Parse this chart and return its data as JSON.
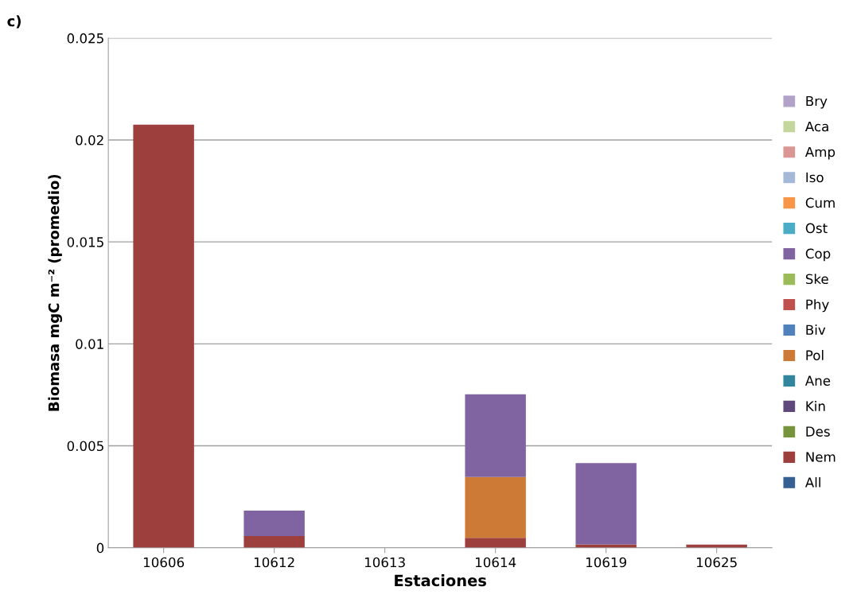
{
  "chart_data": {
    "type": "bar",
    "stacked": true,
    "title": "c)",
    "xlabel": "Estaciones",
    "ylabel": "Biomasa mgC m⁻² (promedio)",
    "categories": [
      "10606",
      "10612",
      "10613",
      "10614",
      "10619",
      "10625"
    ],
    "ylim": [
      0,
      0.025
    ],
    "yticks": [
      {
        "value": 0,
        "label": "0"
      },
      0.005,
      0.01,
      0.015,
      0.02,
      0.025
    ],
    "grid": "y",
    "legend": "right",
    "series": [
      {
        "name": "All",
        "color": "#376092",
        "values": [
          0,
          0,
          0,
          0,
          0,
          0
        ]
      },
      {
        "name": "Nem",
        "color": "#9c3f3d",
        "values": [
          0.02075,
          0.00057,
          0,
          0.00048,
          0.00016,
          0.00015
        ]
      },
      {
        "name": "Des",
        "color": "#77933c",
        "values": [
          0,
          0,
          0,
          0,
          0,
          0
        ]
      },
      {
        "name": "Kin",
        "color": "#5f497a",
        "values": [
          0,
          0,
          0,
          0,
          0,
          0
        ]
      },
      {
        "name": "Ane",
        "color": "#31859c",
        "values": [
          0,
          0,
          0,
          0,
          0,
          0
        ]
      },
      {
        "name": "Pol",
        "color": "#cc7a35",
        "values": [
          0,
          0,
          0,
          0.00299,
          0,
          0
        ]
      },
      {
        "name": "Biv",
        "color": "#4f81bd",
        "values": [
          0,
          0,
          0,
          0,
          0,
          0
        ]
      },
      {
        "name": "Phy",
        "color": "#c0504d",
        "values": [
          0,
          0,
          0,
          0,
          0,
          0
        ]
      },
      {
        "name": "Ske",
        "color": "#9bbb59",
        "values": [
          0,
          0,
          0,
          0,
          0,
          0
        ]
      },
      {
        "name": "Cop",
        "color": "#8064a2",
        "values": [
          0,
          0.00125,
          0,
          0.00406,
          0.00399,
          0
        ]
      },
      {
        "name": "Ost",
        "color": "#4bacc6",
        "values": [
          0,
          0,
          0,
          0,
          0,
          0
        ]
      },
      {
        "name": "Cum",
        "color": "#f79646",
        "values": [
          0,
          0,
          0,
          0,
          0,
          0
        ]
      },
      {
        "name": "Iso",
        "color": "#a6b8d8",
        "values": [
          0,
          0,
          0,
          0,
          0,
          0
        ]
      },
      {
        "name": "Amp",
        "color": "#d99694",
        "values": [
          0,
          0,
          0,
          0,
          0,
          0
        ]
      },
      {
        "name": "Aca",
        "color": "#c3d69b",
        "values": [
          0,
          0,
          0,
          0,
          0,
          0
        ]
      },
      {
        "name": "Bry",
        "color": "#b3a2c7",
        "values": [
          0,
          0,
          0,
          0,
          0,
          0
        ]
      }
    ]
  }
}
